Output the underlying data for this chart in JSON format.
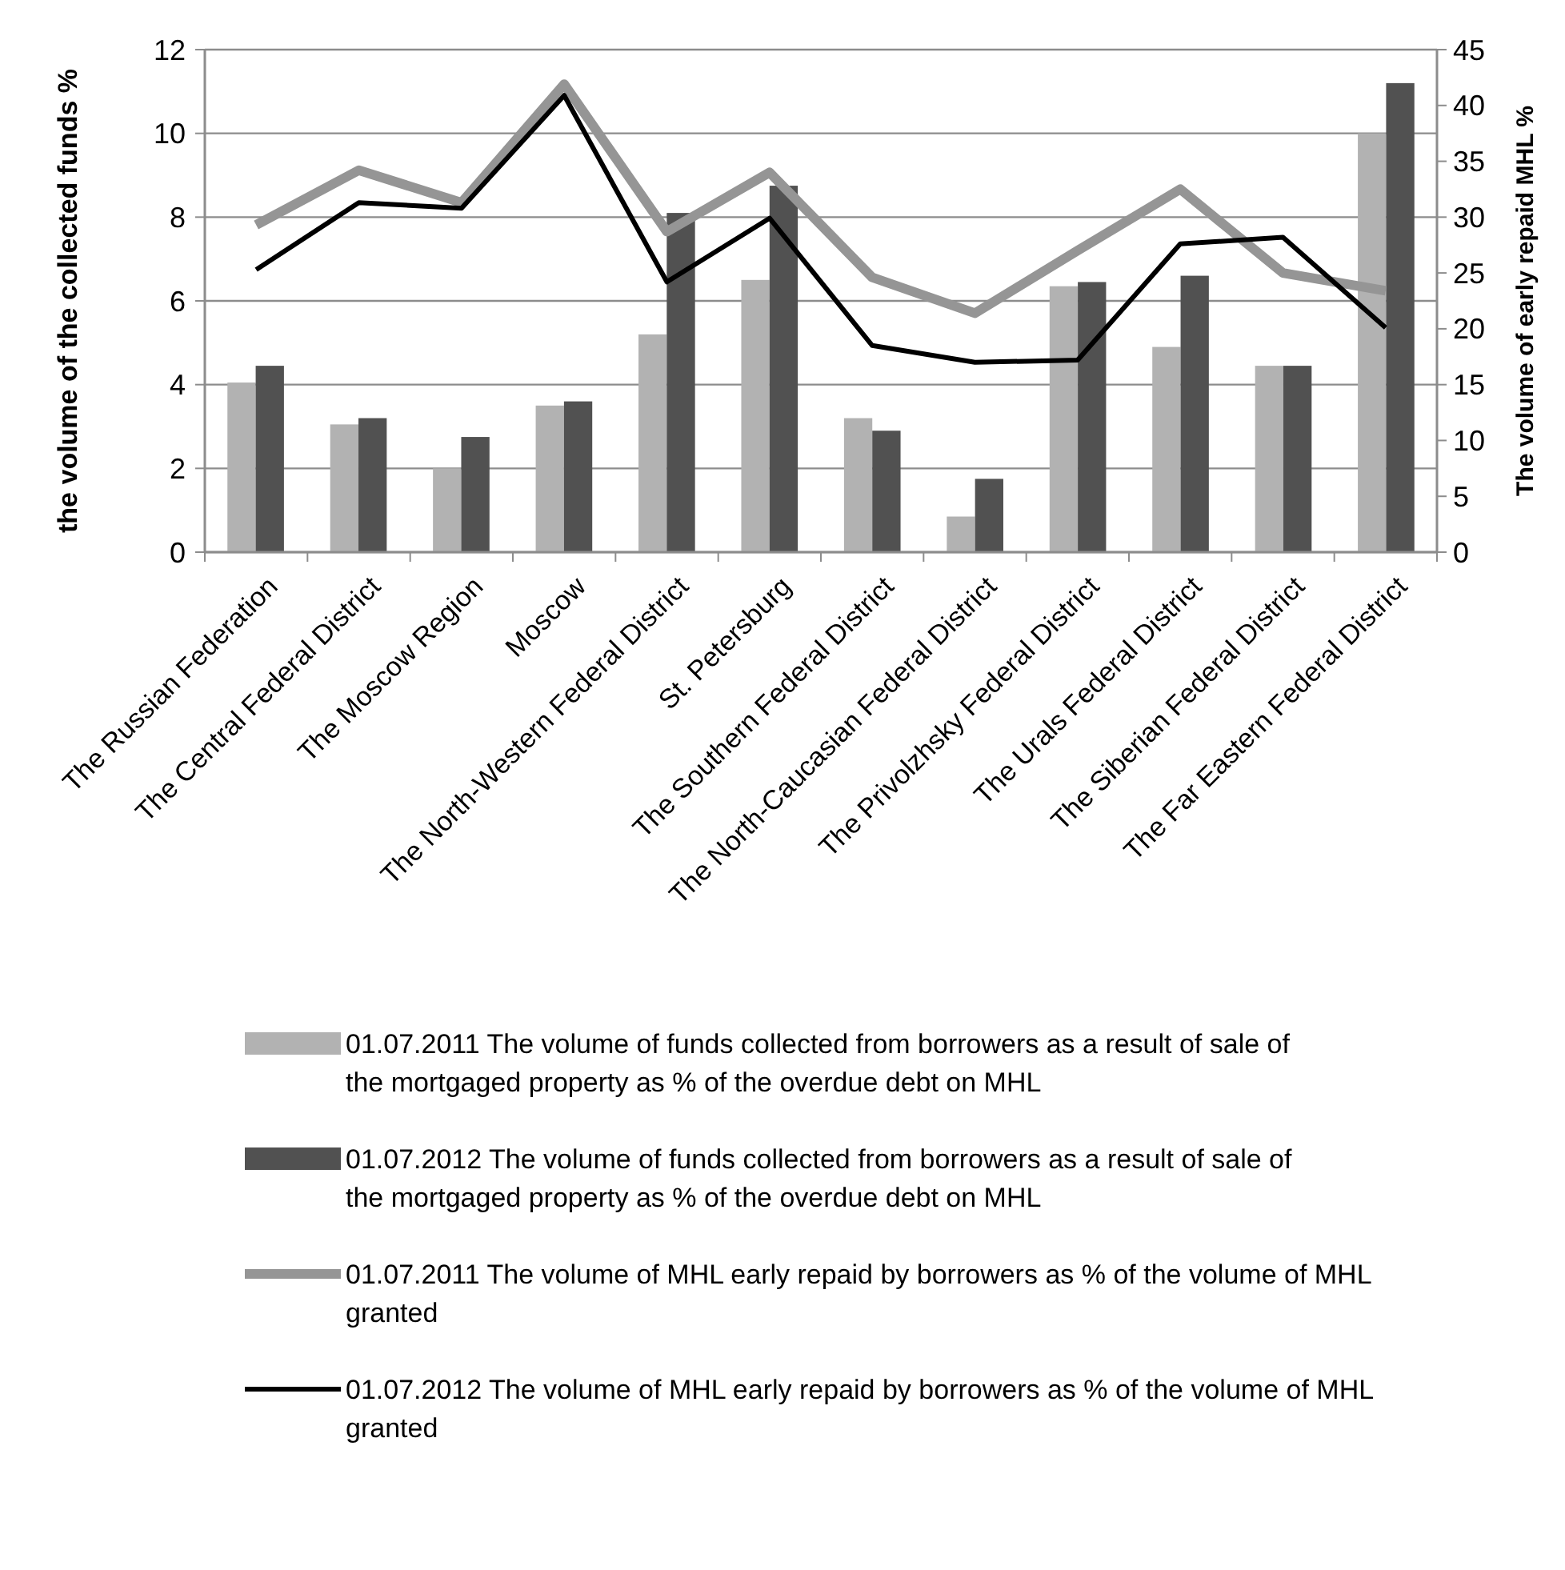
{
  "chart_data": {
    "type": "bar",
    "ylabel": "the volume of the collected funds %",
    "y2label": "The volume of early repaid MHL %",
    "categories": [
      "The Russian Federation",
      "The Central Federal District",
      "The Moscow Region",
      "Moscow",
      "The North-Western Federal District",
      "St. Petersburg",
      "The Southern Federal District",
      "The North-Caucasian Federal District",
      "The Privolzhsky Federal District",
      "The Urals Federal District",
      "The Siberian Federal District",
      "The Far Eastern Federal District"
    ],
    "series": [
      {
        "name": "01.07.2011 The volume of funds collected from borrowers as a result of sale of the mortgaged property as % of the overdue debt on MHL",
        "color": "#b2b2b2",
        "values": [
          4.05,
          3.05,
          2.0,
          3.5,
          5.2,
          6.5,
          3.2,
          0.85,
          6.35,
          4.9,
          4.45,
          10.0
        ]
      },
      {
        "name": "01.07.2012 The volume of funds collected from borrowers as a result of sale of the mortgaged property as % of the overdue debt on MHL",
        "color": "#515151",
        "values": [
          4.45,
          3.2,
          2.75,
          3.6,
          8.1,
          8.75,
          2.9,
          1.75,
          6.45,
          6.6,
          4.45,
          11.2
        ]
      },
      {
        "name": "01.07.2011 The volume of MHL early repaid by borrowers as % of the volume of MHL granted",
        "color": "#959595",
        "type": "line",
        "axis": "y2",
        "values": [
          29.3,
          34.2,
          31.3,
          41.9,
          28.7,
          34.0,
          24.6,
          21.4,
          27.0,
          32.5,
          25.0,
          23.4
        ]
      },
      {
        "name": "01.07.2012 The volume of MHL early repaid by borrowers as % of the volume of MHL granted",
        "color": "#000000",
        "type": "line",
        "axis": "y2",
        "values": [
          25.3,
          31.3,
          30.8,
          40.9,
          24.2,
          29.9,
          18.5,
          17.0,
          17.2,
          27.6,
          28.2,
          20.1
        ]
      }
    ],
    "ylim": [
      0,
      12
    ],
    "yticks": [
      0,
      2,
      4,
      6,
      8,
      10,
      12
    ],
    "y2lim": [
      0,
      45
    ],
    "y2ticks": [
      0,
      5,
      10,
      15,
      20,
      25,
      30,
      35,
      40,
      45
    ],
    "grid": "y",
    "legend": "bottom",
    "marker": "none"
  }
}
